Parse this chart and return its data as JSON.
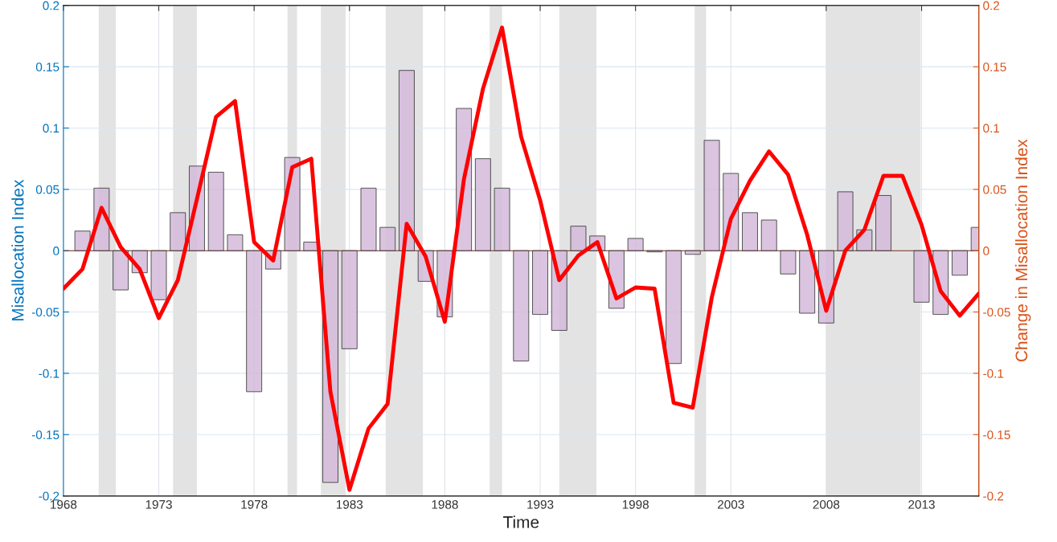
{
  "chart_data": {
    "type": "bar",
    "xlabel": "Time",
    "ylabel": "Misallocation Index",
    "y2label": "Change in Misallocation Index",
    "xlim": [
      1968,
      2016
    ],
    "xticks": [
      1968,
      1973,
      1978,
      1983,
      1988,
      1993,
      1998,
      2003,
      2008,
      2013
    ],
    "ylim": [
      -0.2,
      0.2
    ],
    "yticks": [
      -0.2,
      -0.15,
      -0.1,
      -0.05,
      0,
      0.05,
      0.1,
      0.15,
      0.2
    ],
    "y2lim": [
      -0.2,
      0.2
    ],
    "y2ticks": [
      -0.2,
      -0.15,
      -0.1,
      -0.05,
      0,
      0.05,
      0.1,
      0.15,
      0.2
    ],
    "grid": true,
    "legend": false,
    "series": [
      {
        "color": "#d4bada",
        "x": [
          1969,
          1970,
          1971,
          1972,
          1973,
          1974,
          1975,
          1976,
          1977,
          1978,
          1979,
          1980,
          1981,
          1982,
          1983,
          1984,
          1985,
          1986,
          1987,
          1988,
          1989,
          1990,
          1991,
          1992,
          1993,
          1994,
          1995,
          1996,
          1997,
          1998,
          1999,
          2000,
          2001,
          2002,
          2003,
          2004,
          2005,
          2006,
          2007,
          2008,
          2009,
          2010,
          2011,
          2012,
          2013,
          2014,
          2015,
          2016
        ],
        "values": [
          0.016,
          0.051,
          -0.032,
          -0.018,
          -0.04,
          0.031,
          0.069,
          0.064,
          0.013,
          -0.115,
          -0.015,
          0.076,
          0.007,
          -0.189,
          -0.08,
          0.051,
          0.019,
          0.147,
          -0.025,
          -0.054,
          0.116,
          0.075,
          0.051,
          -0.09,
          -0.052,
          -0.065,
          0.02,
          0.012,
          -0.047,
          0.01,
          -0.001,
          -0.092,
          -0.003,
          0.09,
          0.063,
          0.031,
          0.025,
          -0.019,
          -0.051,
          -0.059,
          0.048,
          0.017,
          0.045,
          null,
          -0.042,
          -0.052,
          -0.02,
          0.019
        ]
      },
      {
        "type": "line",
        "axis": "y2",
        "color": "#ff0000",
        "x": [
          1968,
          1969,
          1970,
          1971,
          1972,
          1973,
          1974,
          1975,
          1976,
          1977,
          1978,
          1979,
          1980,
          1981,
          1982,
          1983,
          1984,
          1985,
          1986,
          1987,
          1988,
          1989,
          1990,
          1991,
          1992,
          1993,
          1994,
          1995,
          1996,
          1997,
          1998,
          1999,
          2000,
          2001,
          2002,
          2003,
          2004,
          2005,
          2006,
          2007,
          2008,
          2009,
          2010,
          2011,
          2012,
          2013,
          2014,
          2015,
          2016
        ],
        "values": [
          -0.031,
          -0.015,
          0.035,
          0.003,
          -0.015,
          -0.055,
          -0.024,
          0.042,
          0.109,
          0.122,
          0.007,
          -0.008,
          0.068,
          0.075,
          -0.115,
          -0.195,
          -0.145,
          -0.125,
          0.022,
          -0.005,
          -0.058,
          0.058,
          0.132,
          0.182,
          0.093,
          0.041,
          -0.024,
          -0.004,
          0.007,
          -0.039,
          -0.03,
          -0.031,
          -0.124,
          -0.128,
          -0.038,
          0.026,
          0.057,
          0.081,
          0.062,
          0.013,
          -0.049,
          0.0,
          0.017,
          0.061,
          0.061,
          0.021,
          -0.033,
          -0.053,
          -0.035
        ]
      }
    ],
    "bands": [
      {
        "axis": "x",
        "from": 1969.85,
        "to": 1970.75,
        "color": "#e3e3e3"
      },
      {
        "axis": "x",
        "from": 1973.75,
        "to": 1975.0,
        "color": "#e3e3e3"
      },
      {
        "axis": "x",
        "from": 1979.75,
        "to": 1980.25,
        "color": "#e3e3e3"
      },
      {
        "axis": "x",
        "from": 1981.5,
        "to": 1982.8,
        "color": "#e3e3e3"
      },
      {
        "axis": "x",
        "from": 1984.9,
        "to": 1986.85,
        "color": "#e3e3e3"
      },
      {
        "axis": "x",
        "from": 1990.35,
        "to": 1991.0,
        "color": "#e3e3e3"
      },
      {
        "axis": "x",
        "from": 1994.0,
        "to": 1995.95,
        "color": "#e3e3e3"
      },
      {
        "axis": "x",
        "from": 2001.1,
        "to": 2001.7,
        "color": "#e3e3e3"
      },
      {
        "axis": "x",
        "from": 2008.0,
        "to": 2012.95,
        "color": "#e3e3e3"
      }
    ],
    "ref_lines": [
      {
        "axis": "y",
        "value": 0,
        "color": "#7a2a1a"
      }
    ]
  }
}
